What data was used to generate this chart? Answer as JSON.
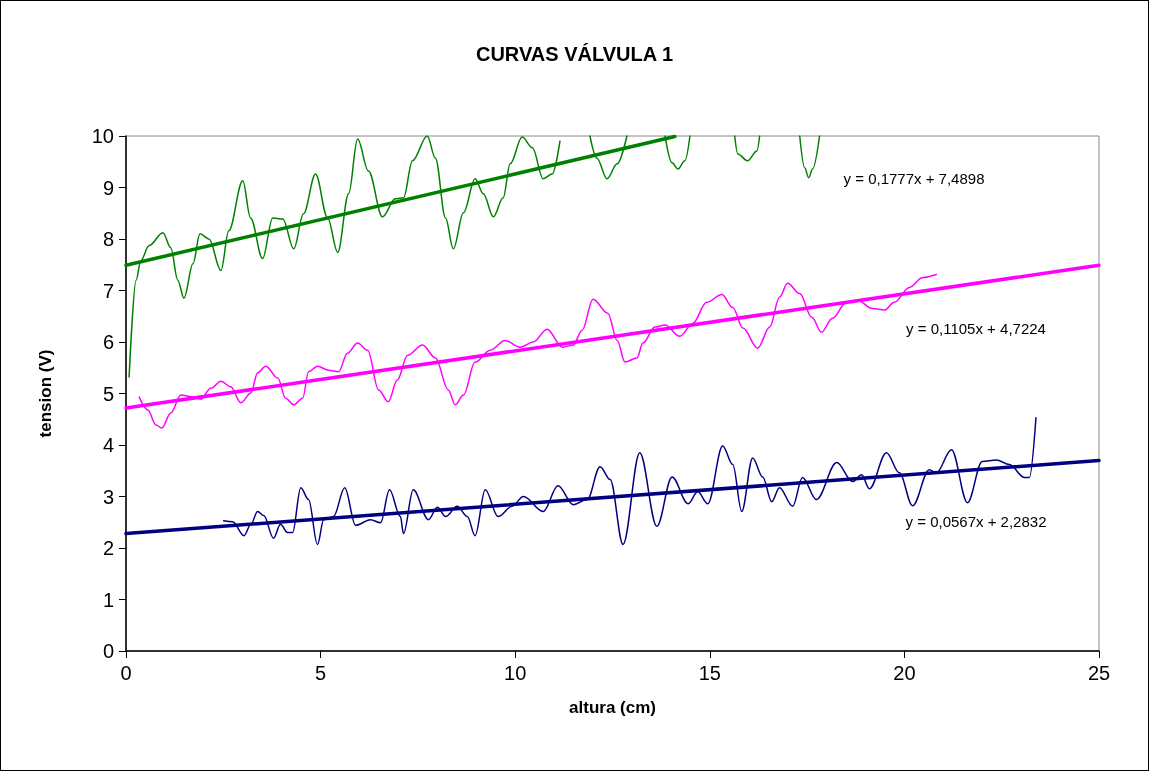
{
  "chart_data": {
    "type": "line",
    "title": "CURVAS VÁLVULA 1",
    "xlabel": "altura (cm)",
    "ylabel": "tension (V)",
    "xlim": [
      0,
      25
    ],
    "xticks": [
      0,
      5,
      10,
      15,
      20,
      25
    ],
    "ylim": [
      0,
      10
    ],
    "yticks": [
      0,
      1,
      2,
      3,
      4,
      5,
      6,
      7,
      8,
      9,
      10
    ],
    "grid": false,
    "marker": "none",
    "line_style": "solid",
    "series": [
      {
        "color": "#008000",
        "x": [
          0.08,
          0.26,
          0.38,
          0.59,
          0.95,
          1.15,
          1.33,
          1.49,
          1.72,
          1.9,
          2.13,
          2.44,
          2.64,
          3.0,
          3.2,
          3.51,
          3.77,
          4.03,
          4.31,
          4.56,
          4.87,
          5.18,
          5.44,
          5.72,
          5.95,
          6.23,
          6.59,
          6.92,
          7.13,
          7.36,
          7.74,
          7.95,
          8.21,
          8.41,
          8.67,
          8.97,
          9.18,
          9.44,
          9.69,
          9.87,
          10.18,
          10.44,
          10.72,
          10.95,
          11.15,
          11.5,
          11.92,
          12.1,
          12.36,
          12.62,
          12.87,
          13.4,
          13.85,
          14.03,
          14.18,
          14.36,
          14.49,
          15.1,
          15.64,
          15.72,
          15.97,
          16.21,
          16.28,
          16.8,
          17.31,
          17.44,
          17.54,
          17.64,
          17.82
        ],
        "values": [
          5.32,
          7.2,
          7.58,
          7.87,
          8.12,
          7.83,
          7.2,
          6.85,
          7.52,
          8.1,
          8.0,
          7.39,
          8.16,
          9.13,
          8.41,
          7.62,
          8.41,
          8.39,
          7.81,
          8.49,
          9.26,
          8.41,
          7.74,
          8.88,
          9.94,
          9.32,
          8.43,
          8.78,
          8.8,
          9.52,
          10.0,
          9.57,
          8.41,
          7.81,
          8.51,
          9.17,
          8.88,
          8.43,
          8.8,
          9.46,
          9.98,
          9.77,
          9.17,
          9.26,
          9.9,
          null,
          10.0,
          9.57,
          9.17,
          9.46,
          10.0,
          null,
          10.0,
          9.48,
          9.36,
          9.52,
          10.0,
          null,
          10.0,
          9.65,
          9.52,
          9.71,
          10.0,
          null,
          10.0,
          9.38,
          9.19,
          9.36,
          10.0
        ]
      },
      {
        "color": "#ff00ff",
        "x": [
          0.34,
          0.56,
          0.77,
          0.92,
          1.15,
          1.41,
          1.72,
          1.92,
          2.18,
          2.44,
          2.69,
          2.95,
          3.21,
          3.38,
          3.59,
          3.9,
          4.1,
          4.31,
          4.54,
          4.69,
          4.92,
          5.21,
          5.46,
          5.69,
          5.95,
          6.21,
          6.49,
          6.74,
          6.97,
          7.23,
          7.62,
          7.95,
          8.28,
          8.46,
          8.67,
          8.97,
          9.36,
          9.74,
          10.13,
          10.46,
          10.82,
          11.21,
          11.49,
          11.72,
          12.0,
          12.38,
          12.62,
          12.82,
          13.13,
          13.28,
          13.59,
          13.85,
          14.23,
          14.56,
          14.92,
          15.31,
          15.59,
          15.85,
          16.23,
          16.54,
          16.79,
          17.0,
          17.31,
          17.62,
          17.87,
          18.15,
          18.51,
          18.79,
          19.18,
          19.49,
          19.74,
          20.13,
          20.46,
          20.82
        ],
        "values": [
          4.93,
          4.68,
          4.39,
          4.33,
          4.62,
          4.97,
          4.93,
          4.89,
          5.1,
          5.24,
          5.13,
          4.82,
          5.01,
          5.4,
          5.53,
          5.3,
          4.91,
          4.78,
          4.91,
          5.42,
          5.53,
          5.45,
          5.42,
          5.78,
          5.98,
          5.84,
          5.07,
          4.84,
          5.26,
          5.74,
          5.94,
          5.69,
          5.07,
          4.78,
          4.97,
          5.61,
          5.84,
          6.03,
          5.9,
          6.0,
          6.25,
          5.9,
          5.94,
          6.23,
          6.83,
          6.56,
          6.03,
          5.61,
          5.69,
          5.98,
          6.29,
          6.33,
          6.11,
          6.36,
          6.77,
          6.92,
          6.67,
          6.27,
          5.88,
          6.29,
          6.87,
          7.14,
          6.94,
          6.48,
          6.19,
          6.46,
          6.77,
          6.81,
          6.65,
          6.62,
          6.77,
          7.06,
          7.25,
          7.31
        ]
      },
      {
        "color": "#000080",
        "x": [
          2.51,
          2.74,
          3.03,
          3.21,
          3.38,
          3.54,
          3.79,
          3.97,
          4.15,
          4.28,
          4.49,
          4.69,
          4.92,
          5.08,
          5.33,
          5.62,
          5.9,
          6.28,
          6.54,
          6.77,
          7.05,
          7.13,
          7.38,
          7.77,
          8.0,
          8.21,
          8.51,
          8.77,
          8.97,
          9.23,
          9.56,
          9.92,
          10.21,
          10.72,
          11.1,
          11.49,
          11.85,
          12.18,
          12.44,
          12.77,
          13.2,
          13.64,
          14.03,
          14.44,
          14.69,
          14.95,
          15.33,
          15.59,
          15.82,
          16.1,
          16.36,
          16.59,
          16.79,
          17.13,
          17.38,
          17.74,
          18.26,
          18.67,
          18.9,
          19.1,
          19.54,
          19.87,
          20.21,
          20.64,
          20.82,
          21.21,
          21.62,
          22.0,
          22.36,
          22.7,
          23.08,
          23.21,
          23.38
        ],
        "values": [
          2.53,
          2.51,
          2.24,
          2.46,
          2.71,
          2.63,
          2.19,
          2.46,
          2.3,
          2.3,
          3.17,
          2.94,
          2.07,
          2.55,
          2.61,
          3.17,
          2.44,
          2.55,
          2.49,
          3.13,
          2.61,
          2.28,
          3.13,
          2.55,
          2.79,
          2.61,
          2.81,
          2.61,
          2.24,
          3.13,
          2.61,
          2.81,
          3.0,
          2.71,
          3.21,
          2.84,
          2.94,
          3.58,
          3.33,
          2.07,
          3.85,
          2.42,
          3.38,
          2.86,
          3.09,
          2.86,
          3.98,
          3.62,
          2.71,
          3.75,
          3.38,
          2.9,
          3.17,
          2.81,
          3.37,
          2.94,
          3.66,
          3.29,
          3.42,
          3.15,
          3.85,
          3.46,
          2.82,
          3.52,
          3.46,
          3.91,
          2.88,
          3.68,
          3.71,
          3.62,
          3.37,
          3.37,
          4.53
        ]
      },
      {
        "color": "#008000",
        "x": [
          0,
          14.1
        ],
        "values": [
          7.49,
          9.99
        ]
      },
      {
        "color": "#ff00ff",
        "x": [
          0,
          25
        ],
        "values": [
          4.72,
          7.49
        ]
      },
      {
        "color": "#000080",
        "x": [
          0,
          25
        ],
        "values": [
          2.28,
          3.7
        ]
      }
    ],
    "annotations": [
      "y = 0,1777x + 7,4898",
      "y = 0,1105x + 4,7224",
      "y = 0,0567x + 2,2832"
    ]
  }
}
